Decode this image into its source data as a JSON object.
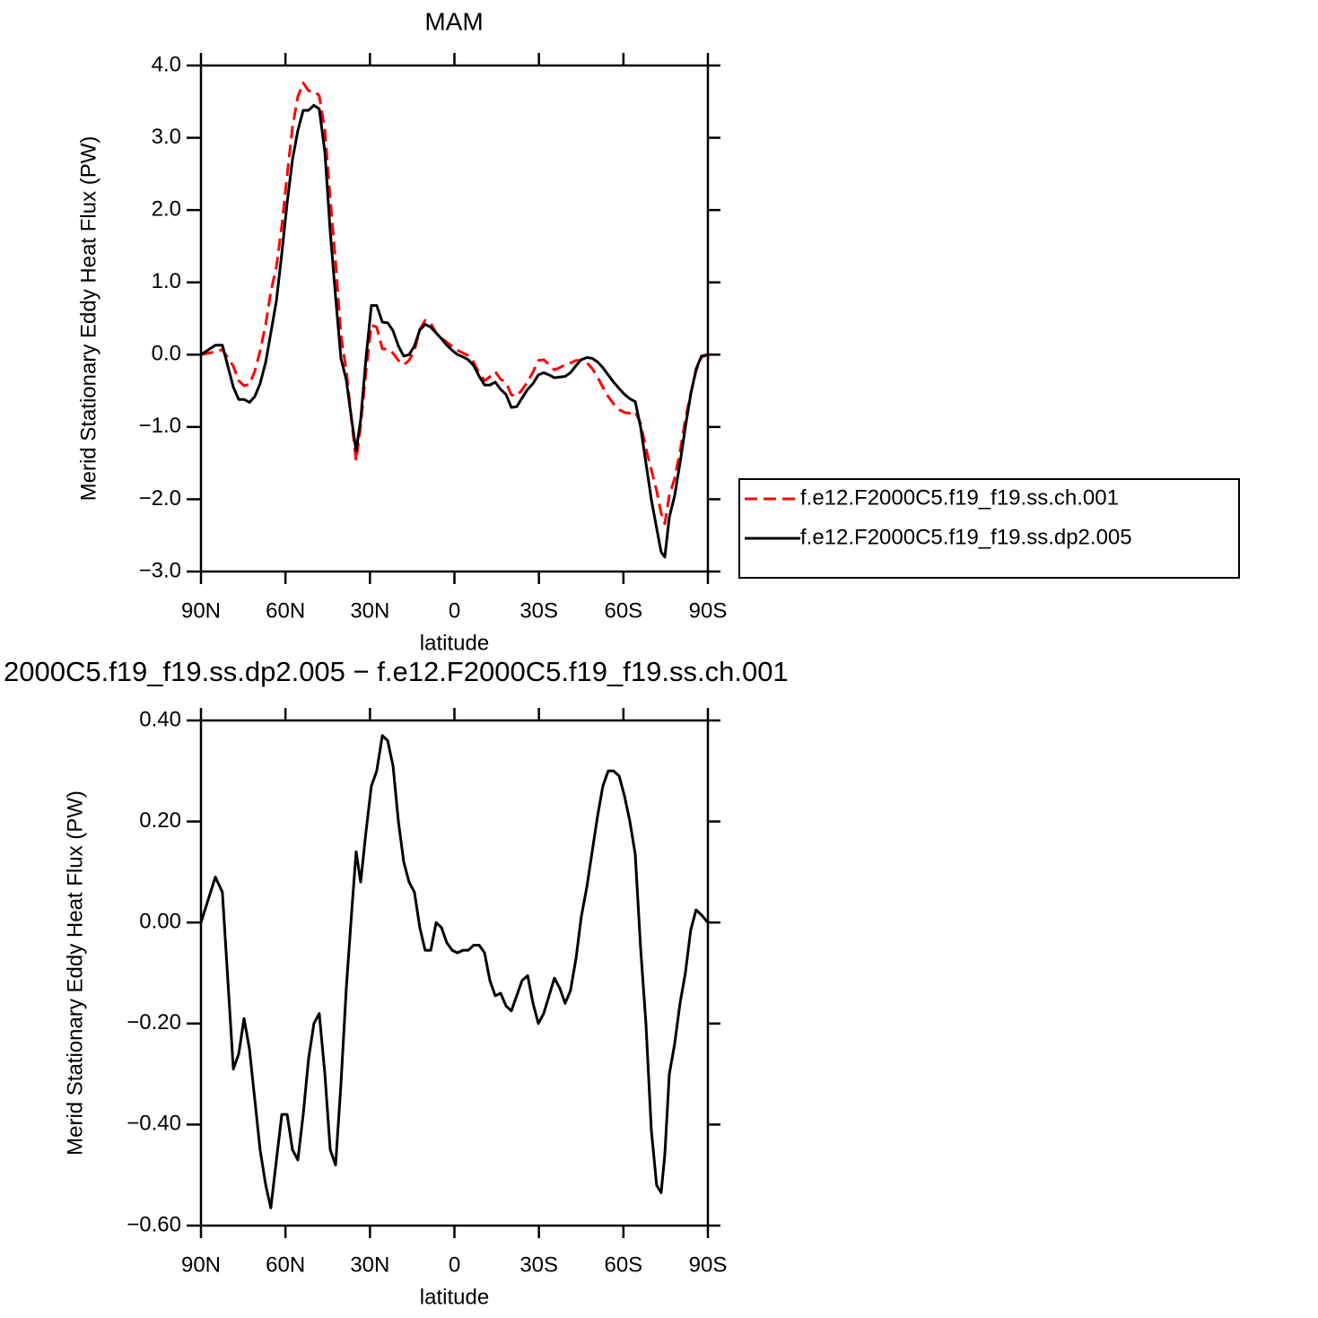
{
  "chart_data": [
    {
      "type": "line",
      "title": "MAM",
      "xlabel": "latitude",
      "ylabel": "Merid Stationary Eddy Heat Flux (PW)",
      "x": [
        90,
        84.9,
        82.4,
        78.5,
        76.6,
        74.7,
        72.8,
        70.9,
        69.0,
        67.0,
        65.2,
        63.2,
        61.3,
        59.4,
        57.5,
        55.6,
        53.7,
        51.8,
        49.9,
        48.0,
        46.0,
        44.1,
        42.2,
        40.3,
        38.4,
        36.5,
        34.9,
        33.3,
        31.4,
        29.5,
        27.6,
        25.6,
        23.7,
        21.8,
        19.9,
        18.0,
        16.1,
        14.2,
        12.3,
        10.4,
        8.4,
        6.5,
        4.6,
        2.7,
        0.8,
        -1.1,
        -3.0,
        -4.9,
        -6.8,
        -8.8,
        -10.7,
        -12.6,
        -14.5,
        -16.4,
        -18.3,
        -20.2,
        -22.1,
        -24.0,
        -26.0,
        -27.9,
        -29.8,
        -31.7,
        -33.6,
        -35.5,
        -37.4,
        -39.3,
        -41.2,
        -43.2,
        -45.0,
        -47.0,
        -48.9,
        -50.8,
        -52.7,
        -54.6,
        -56.5,
        -58.5,
        -60.4,
        -62.3,
        -64.2,
        -66.1,
        -68.0,
        -69.9,
        -71.8,
        -73.4,
        -74.7,
        -76.3,
        -78.2,
        -80.1,
        -82.0,
        -83.9,
        -85.8,
        -87.7,
        -90
      ],
      "series": [
        {
          "name": "f.e12.F2000C5.f19_f19.ss.ch.001",
          "color": "#ff0000",
          "line_style": "dashed",
          "values": [
            0,
            0.04,
            0.07,
            -0.16,
            -0.36,
            -0.43,
            -0.41,
            -0.23,
            0.05,
            0.42,
            0.87,
            1.22,
            1.78,
            2.48,
            3.15,
            3.57,
            3.76,
            3.65,
            3.65,
            3.58,
            3.1,
            2.15,
            1.28,
            0.27,
            -0.22,
            -0.92,
            -1.47,
            -0.98,
            -0.23,
            0.41,
            0.38,
            0.08,
            0.08,
            0.02,
            -0.08,
            -0.14,
            -0.08,
            0.06,
            0.35,
            0.475,
            0.435,
            0.3,
            0.23,
            0.17,
            0.115,
            0.06,
            0.025,
            -0.015,
            -0.105,
            -0.255,
            -0.36,
            -0.305,
            -0.235,
            -0.34,
            -0.385,
            -0.555,
            -0.575,
            -0.485,
            -0.375,
            -0.24,
            -0.08,
            -0.07,
            -0.135,
            -0.21,
            -0.18,
            -0.14,
            -0.115,
            -0.08,
            -0.08,
            -0.11,
            -0.19,
            -0.31,
            -0.45,
            -0.58,
            -0.68,
            -0.76,
            -0.8,
            -0.81,
            -0.785,
            -0.95,
            -1.3,
            -1.59,
            -1.88,
            -2.195,
            -2.34,
            -1.95,
            -1.71,
            -1.34,
            -0.9,
            -0.535,
            -0.225,
            -0.035,
            0
          ]
        },
        {
          "name": "f.e12.F2000C5.f19_f19.ss.dp2.005",
          "color": "#000000",
          "line_style": "solid",
          "values": [
            0,
            0.13,
            0.13,
            -0.45,
            -0.62,
            -0.62,
            -0.66,
            -0.58,
            -0.4,
            -0.1,
            0.3,
            0.75,
            1.4,
            2.1,
            2.7,
            3.1,
            3.38,
            3.38,
            3.45,
            3.4,
            2.8,
            1.7,
            0.8,
            -0.05,
            -0.35,
            -0.9,
            -1.33,
            -0.9,
            -0.05,
            0.68,
            0.68,
            0.45,
            0.44,
            0.33,
            0.12,
            -0.02,
            0,
            0.12,
            0.34,
            0.42,
            0.38,
            0.3,
            0.22,
            0.13,
            0.06,
            0,
            -0.03,
            -0.07,
            -0.15,
            -0.3,
            -0.42,
            -0.42,
            -0.38,
            -0.48,
            -0.55,
            -0.73,
            -0.72,
            -0.6,
            -0.48,
            -0.4,
            -0.28,
            -0.25,
            -0.28,
            -0.32,
            -0.31,
            -0.3,
            -0.25,
            -0.15,
            -0.07,
            -0.04,
            -0.05,
            -0.1,
            -0.18,
            -0.28,
            -0.38,
            -0.47,
            -0.55,
            -0.61,
            -0.65,
            -1.0,
            -1.5,
            -2.0,
            -2.4,
            -2.73,
            -2.8,
            -2.25,
            -1.95,
            -1.5,
            -1.0,
            -0.55,
            -0.2,
            -0.02,
            0
          ]
        }
      ],
      "xlim": [
        90,
        -90
      ],
      "xticks": [
        {
          "value": 90,
          "label": "90N"
        },
        {
          "value": 60,
          "label": "60N"
        },
        {
          "value": 30,
          "label": "30N"
        },
        0,
        {
          "value": -30,
          "label": "30S"
        },
        {
          "value": -60,
          "label": "60S"
        },
        {
          "value": -90,
          "label": "90S"
        }
      ],
      "ylim": [
        -3,
        4
      ],
      "yticks": [
        {
          "value": -3,
          "label": "−3.0"
        },
        {
          "value": -2,
          "label": "−2.0"
        },
        {
          "value": -1,
          "label": "−1.0"
        },
        {
          "value": 0,
          "label": "0.0"
        },
        {
          "value": 1,
          "label": "1.0"
        },
        {
          "value": 2,
          "label": "2.0"
        },
        {
          "value": 3,
          "label": "3.0"
        },
        {
          "value": 4,
          "label": "4.0"
        }
      ],
      "legend": "outside-right"
    },
    {
      "type": "line",
      "title": "2000C5.f19_f19.ss.dp2.005 − f.e12.F2000C5.f19_f19.ss.ch.001",
      "xlabel": "latitude",
      "ylabel": "Merid Stationary Eddy Heat Flux (PW)",
      "x": [
        90,
        84.9,
        82.4,
        78.5,
        76.6,
        74.7,
        72.8,
        70.9,
        69.0,
        67.0,
        65.2,
        63.2,
        61.3,
        59.4,
        57.5,
        55.6,
        53.7,
        51.8,
        49.9,
        48.0,
        46.0,
        44.1,
        42.2,
        40.3,
        38.4,
        36.5,
        34.9,
        33.3,
        31.4,
        29.5,
        27.6,
        25.6,
        23.7,
        21.8,
        19.9,
        18.0,
        16.1,
        14.2,
        12.3,
        10.4,
        8.4,
        6.5,
        4.6,
        2.7,
        0.8,
        -1.1,
        -3.0,
        -4.9,
        -6.8,
        -8.8,
        -10.7,
        -12.6,
        -14.5,
        -16.4,
        -18.3,
        -20.2,
        -22.1,
        -24.0,
        -26.0,
        -27.9,
        -29.8,
        -31.7,
        -33.6,
        -35.5,
        -37.4,
        -39.3,
        -41.2,
        -43.2,
        -45.0,
        -47.0,
        -48.9,
        -50.8,
        -52.7,
        -54.6,
        -56.5,
        -58.5,
        -60.4,
        -62.3,
        -64.2,
        -66.1,
        -68.0,
        -69.9,
        -71.8,
        -73.4,
        -74.7,
        -76.3,
        -78.2,
        -80.1,
        -82.0,
        -83.9,
        -85.8,
        -87.7,
        -90
      ],
      "series": [
        {
          "color": "#000000",
          "line_style": "solid",
          "values": [
            0,
            0.09,
            0.06,
            -0.29,
            -0.26,
            -0.19,
            -0.25,
            -0.35,
            -0.45,
            -0.52,
            -0.565,
            -0.47,
            -0.38,
            -0.38,
            -0.45,
            -0.47,
            -0.38,
            -0.27,
            -0.2,
            -0.18,
            -0.3,
            -0.45,
            -0.48,
            -0.32,
            -0.13,
            0.02,
            0.14,
            0.08,
            0.18,
            0.27,
            0.3,
            0.37,
            0.36,
            0.31,
            0.2,
            0.12,
            0.08,
            0.06,
            -0.01,
            -0.055,
            -0.055,
            0,
            -0.01,
            -0.04,
            -0.055,
            -0.06,
            -0.055,
            -0.055,
            -0.045,
            -0.045,
            -0.06,
            -0.115,
            -0.145,
            -0.14,
            -0.165,
            -0.175,
            -0.145,
            -0.115,
            -0.105,
            -0.16,
            -0.2,
            -0.18,
            -0.145,
            -0.11,
            -0.13,
            -0.16,
            -0.135,
            -0.07,
            0.01,
            0.07,
            0.14,
            0.21,
            0.27,
            0.3,
            0.3,
            0.29,
            0.25,
            0.2,
            0.135,
            -0.05,
            -0.2,
            -0.41,
            -0.52,
            -0.535,
            -0.46,
            -0.3,
            -0.24,
            -0.16,
            -0.1,
            -0.015,
            0.025,
            0.015,
            0
          ]
        }
      ],
      "xlim": [
        90,
        -90
      ],
      "xticks": [
        {
          "value": 90,
          "label": "90N"
        },
        {
          "value": 60,
          "label": "60N"
        },
        {
          "value": 30,
          "label": "30N"
        },
        0,
        {
          "value": -30,
          "label": "30S"
        },
        {
          "value": -60,
          "label": "60S"
        },
        {
          "value": -90,
          "label": "90S"
        }
      ],
      "ylim": [
        -0.6,
        0.4
      ],
      "yticks": [
        {
          "value": -0.6,
          "label": "−0.60"
        },
        {
          "value": -0.4,
          "label": "−0.40"
        },
        {
          "value": -0.2,
          "label": "−0.20"
        },
        {
          "value": 0,
          "label": "0.00"
        },
        {
          "value": 0.2,
          "label": "0.20"
        },
        {
          "value": 0.4,
          "label": "0.40"
        }
      ]
    }
  ]
}
